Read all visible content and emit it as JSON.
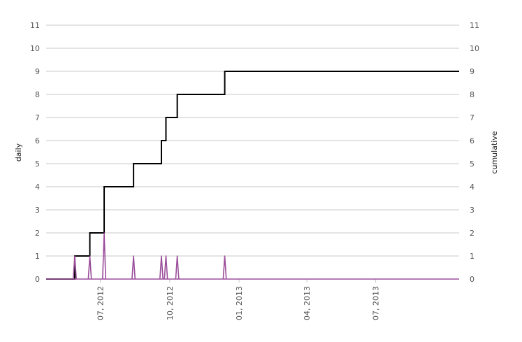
{
  "chart_data": {
    "type": "line",
    "title": "",
    "xlabel": "",
    "ylabel_left": "daily",
    "ylabel_right": "cumulative",
    "ylim": [
      0,
      11
    ],
    "yticks": [
      0,
      1,
      2,
      3,
      4,
      5,
      6,
      7,
      8,
      9,
      10,
      11
    ],
    "xlim": [
      "2012-04-20",
      "2013-10-20"
    ],
    "xticks": [
      {
        "date": "2012-07-01",
        "label": "07, 2012"
      },
      {
        "date": "2012-10-01",
        "label": "10, 2012"
      },
      {
        "date": "2013-01-01",
        "label": "01, 2013"
      },
      {
        "date": "2013-04-01",
        "label": "04, 2013"
      },
      {
        "date": "2013-07-01",
        "label": "07, 2013"
      }
    ],
    "grid": true,
    "series": [
      {
        "name": "",
        "axis": "right",
        "style": "step",
        "color": "#000000",
        "points": [
          {
            "x": "2012-04-20",
            "y": 0
          },
          {
            "x": "2012-05-28",
            "y": 1
          },
          {
            "x": "2012-06-17",
            "y": 2
          },
          {
            "x": "2012-07-06",
            "y": 4
          },
          {
            "x": "2012-08-14",
            "y": 5
          },
          {
            "x": "2012-09-20",
            "y": 6
          },
          {
            "x": "2012-09-26",
            "y": 7
          },
          {
            "x": "2012-10-11",
            "y": 8
          },
          {
            "x": "2012-12-13",
            "y": 9
          },
          {
            "x": "2013-10-20",
            "y": 9
          }
        ]
      },
      {
        "name": "",
        "axis": "left",
        "style": "spikes",
        "color": "#9b4f9b",
        "events": [
          {
            "x": "2012-05-28",
            "y": 1
          },
          {
            "x": "2012-06-17",
            "y": 1
          },
          {
            "x": "2012-07-06",
            "y": 2
          },
          {
            "x": "2012-08-14",
            "y": 1
          },
          {
            "x": "2012-09-20",
            "y": 1
          },
          {
            "x": "2012-09-26",
            "y": 1
          },
          {
            "x": "2012-10-11",
            "y": 1
          },
          {
            "x": "2012-12-13",
            "y": 1
          }
        ]
      }
    ]
  }
}
